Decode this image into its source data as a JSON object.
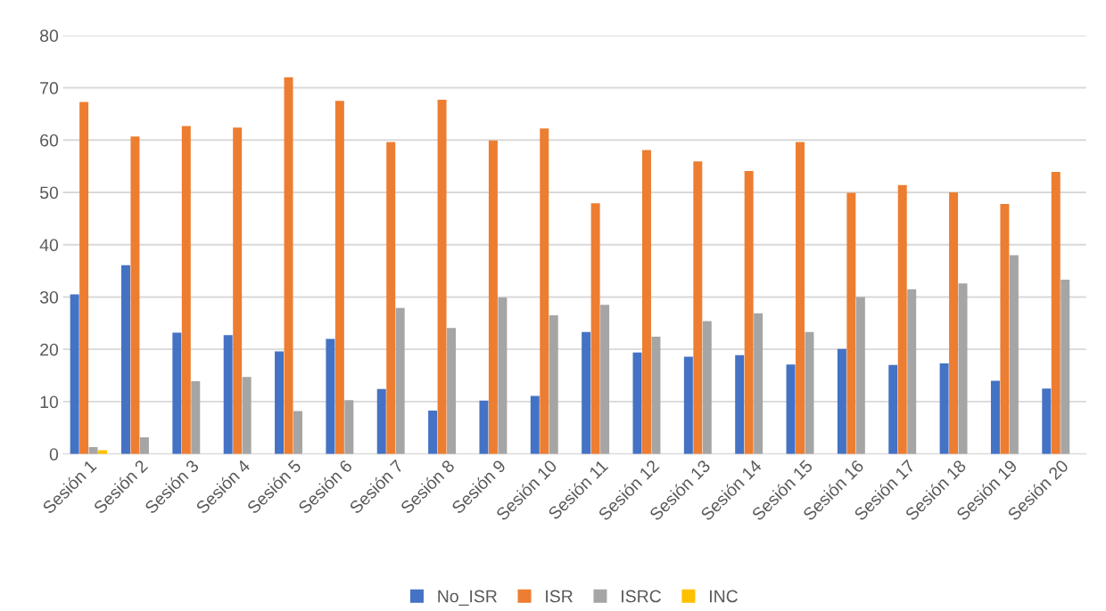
{
  "chart_data": {
    "type": "bar",
    "categories": [
      "Sesión 1",
      "Sesión 2",
      "Sesión 3",
      "Sesión 4",
      "Sesión 5",
      "Sesión 6",
      "Sesión 7",
      "Sesión 8",
      "Sesión 9",
      "Sesión 10",
      "Sesión 11",
      "Sesión 12",
      "Sesión 13",
      "Sesión 14",
      "Sesión 15",
      "Sesión 16",
      "Sesión 17",
      "Sesión 18",
      "Sesión 19",
      "Sesión 20"
    ],
    "series": [
      {
        "name": "No_ISR",
        "color": "#4472c4",
        "values": [
          30.5,
          36.1,
          23.2,
          22.7,
          19.6,
          22.0,
          12.4,
          8.3,
          10.2,
          11.1,
          23.3,
          19.4,
          18.6,
          18.9,
          17.1,
          20.1,
          17.0,
          17.3,
          14.0,
          12.5
        ]
      },
      {
        "name": "ISR",
        "color": "#ed7d31",
        "values": [
          67.3,
          60.7,
          62.7,
          62.4,
          72.0,
          67.5,
          59.6,
          67.7,
          59.9,
          62.2,
          47.9,
          58.1,
          55.9,
          54.1,
          59.6,
          49.9,
          51.4,
          50.0,
          47.8,
          53.9
        ]
      },
      {
        "name": "ISRC",
        "color": "#a5a5a5",
        "values": [
          1.3,
          3.2,
          13.9,
          14.7,
          8.2,
          10.3,
          27.9,
          24.1,
          29.9,
          26.5,
          28.5,
          22.4,
          25.4,
          26.9,
          23.3,
          30.0,
          31.5,
          32.6,
          38.0,
          33.3
        ]
      },
      {
        "name": "INC",
        "color": "#ffc000",
        "values": [
          0.7,
          0,
          0,
          0,
          0,
          0,
          0,
          0,
          0,
          0,
          0,
          0,
          0,
          0,
          0,
          0,
          0,
          0,
          0,
          0
        ]
      }
    ],
    "ylim": [
      0,
      80
    ],
    "yticks": [
      0,
      10,
      20,
      30,
      40,
      50,
      60,
      70,
      80
    ],
    "grid": "y",
    "legend": "bottom"
  }
}
